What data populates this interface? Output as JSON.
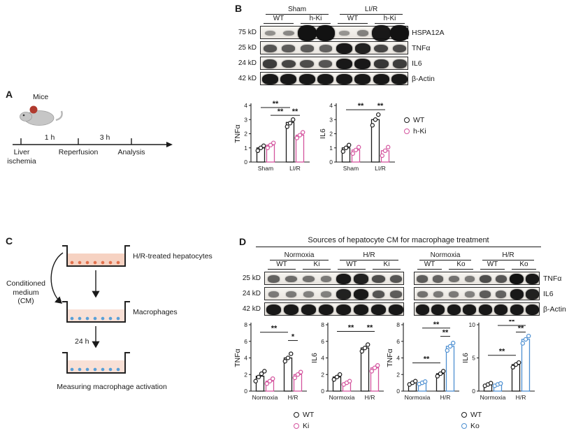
{
  "colors": {
    "wt": "#1a1a1a",
    "ki": "#d4549e",
    "ko": "#4d8fd1"
  },
  "panelA": {
    "label": "A",
    "mice_label": "Mice",
    "timeline": {
      "interval1": "1 h",
      "interval2": "3 h",
      "stop1": "Liver ischemia",
      "stop2": "Reperfusion",
      "stop3": "Analysis"
    }
  },
  "panelB": {
    "label": "B",
    "blot": {
      "groups": [
        {
          "name": "Sham",
          "subs": [
            "WT",
            "h-Ki"
          ]
        },
        {
          "name": "LI/R",
          "subs": [
            "WT",
            "h-Ki"
          ]
        }
      ],
      "rows": [
        {
          "kd": "75 kD",
          "protein": "HSPA12A",
          "blob": true,
          "bands": [
            0.15,
            0.2,
            1,
            1,
            0.12,
            0.25,
            0.95,
            1
          ]
        },
        {
          "kd": "25 kD",
          "protein": "TNFα",
          "bands": [
            0.55,
            0.5,
            0.5,
            0.45,
            0.95,
            0.9,
            0.65,
            0.6
          ]
        },
        {
          "kd": "24 kD",
          "protein": "IL6",
          "bands": [
            0.7,
            0.65,
            0.6,
            0.55,
            0.95,
            0.95,
            0.75,
            0.7
          ]
        },
        {
          "kd": "42 kD",
          "protein": "β-Actin",
          "bands": [
            0.95,
            0.95,
            0.95,
            0.95,
            0.95,
            0.95,
            0.95,
            0.95
          ]
        }
      ]
    },
    "charts": [
      {
        "type": "bar",
        "ylabel": "TNFα",
        "ylim": [
          0,
          4
        ],
        "yticks": [
          0,
          1,
          2,
          3,
          4
        ],
        "categories": [
          "Sham",
          "LI/R"
        ],
        "series": [
          {
            "name": "WT",
            "color": "#1a1a1a",
            "values": [
              1.0,
              2.8
            ],
            "points": [
              [
                0.8,
                1.0,
                1.15
              ],
              [
                2.5,
                2.75,
                3.0
              ]
            ]
          },
          {
            "name": "h-Ki",
            "color": "#d4549e",
            "values": [
              1.2,
              1.9
            ],
            "points": [
              [
                1.0,
                1.2,
                1.35
              ],
              [
                1.7,
                1.9,
                2.1
              ]
            ]
          }
        ],
        "sigs": [
          {
            "a": [
              0,
              0
            ],
            "b": [
              1,
              0
            ],
            "y": 3.85,
            "label": "**"
          },
          {
            "a": [
              0,
              1
            ],
            "b": [
              1,
              0
            ],
            "y": 3.3,
            "label": "**"
          },
          {
            "a": [
              1,
              0
            ],
            "b": [
              1,
              1
            ],
            "y": 3.3,
            "label": "**"
          }
        ]
      },
      {
        "type": "bar",
        "ylabel": "IL6",
        "ylim": [
          0,
          4
        ],
        "yticks": [
          0,
          1,
          2,
          3,
          4
        ],
        "categories": [
          "Sham",
          "LI/R"
        ],
        "series": [
          {
            "name": "WT",
            "color": "#1a1a1a",
            "values": [
              1.0,
              3.0
            ],
            "points": [
              [
                0.75,
                1.0,
                1.2
              ],
              [
                2.6,
                3.0,
                3.35
              ]
            ]
          },
          {
            "name": "h-Ki",
            "color": "#d4549e",
            "values": [
              0.85,
              0.8
            ],
            "points": [
              [
                0.6,
                0.85,
                1.05
              ],
              [
                0.45,
                0.8,
                1.05
              ]
            ]
          }
        ],
        "sigs": [
          {
            "a": [
              0,
              0
            ],
            "b": [
              1,
              0
            ],
            "y": 3.7,
            "label": "**"
          },
          {
            "a": [
              1,
              0
            ],
            "b": [
              1,
              1
            ],
            "y": 3.7,
            "label": "**"
          }
        ]
      }
    ],
    "legend": [
      {
        "label": "WT",
        "color": "#1a1a1a"
      },
      {
        "label": "h-Ki",
        "color": "#d4549e"
      }
    ]
  },
  "panelC": {
    "label": "C",
    "cm_label": "Conditioned medium (CM)",
    "dish1_label": "H/R-treated hepatocytes",
    "dish2_label": "Macrophages",
    "duration": "24 h",
    "caption": "Measuring macrophage activation"
  },
  "panelD": {
    "label": "D",
    "title": "Sources of hepatocyte CM for macrophage treatment",
    "blot_left": {
      "groups": [
        {
          "name": "Normoxia",
          "subs": [
            "WT",
            "Ki"
          ]
        },
        {
          "name": "H/R",
          "subs": [
            "WT",
            "Ki"
          ]
        }
      ],
      "rows": [
        {
          "kd": "25 kD",
          "bands": [
            0.45,
            0.4,
            0.35,
            0.3,
            0.95,
            0.9,
            0.6,
            0.55
          ]
        },
        {
          "kd": "24 kD",
          "bands": [
            0.3,
            0.3,
            0.25,
            0.25,
            0.9,
            0.95,
            0.55,
            0.5
          ]
        },
        {
          "kd": "42 kD",
          "bands": [
            0.95,
            0.95,
            0.95,
            0.95,
            0.95,
            0.95,
            0.95,
            0.95
          ]
        }
      ]
    },
    "blot_right": {
      "groups": [
        {
          "name": "Normoxia",
          "subs": [
            "WT",
            "Ko"
          ]
        },
        {
          "name": "H/R",
          "subs": [
            "WT",
            "Ko"
          ]
        }
      ],
      "rows": [
        {
          "protein": "TNFα",
          "bands": [
            0.5,
            0.45,
            0.35,
            0.3,
            0.6,
            0.55,
            1,
            0.95
          ]
        },
        {
          "protein": "IL6",
          "bands": [
            0.35,
            0.3,
            0.3,
            0.25,
            0.5,
            0.45,
            0.95,
            0.9
          ]
        },
        {
          "protein": "β-Actin",
          "bands": [
            0.95,
            0.95,
            0.95,
            0.95,
            0.95,
            0.95,
            0.95,
            0.95
          ]
        }
      ]
    },
    "charts": [
      {
        "type": "bar",
        "ylabel": "TNFα",
        "ylim": [
          0,
          8
        ],
        "yticks": [
          0,
          2,
          4,
          6,
          8
        ],
        "categories": [
          "Normoxia",
          "H/R"
        ],
        "series": [
          {
            "name": "WT",
            "color": "#1a1a1a",
            "values": [
              1.8,
              4.0
            ],
            "points": [
              [
                1.2,
                1.7,
                2.1,
                2.4
              ],
              [
                3.6,
                4.0,
                4.5
              ]
            ]
          },
          {
            "name": "Ki",
            "color": "#d4549e",
            "values": [
              1.2,
              2.0
            ],
            "points": [
              [
                0.9,
                1.2,
                1.5
              ],
              [
                1.6,
                2.0,
                2.3
              ]
            ]
          }
        ],
        "sigs": [
          {
            "a": [
              0,
              0
            ],
            "b": [
              1,
              0
            ],
            "y": 7.1,
            "label": "**"
          },
          {
            "a": [
              1,
              0
            ],
            "b": [
              1,
              1
            ],
            "y": 6.1,
            "label": "*"
          }
        ]
      },
      {
        "type": "bar",
        "ylabel": "IL6",
        "ylim": [
          0,
          8
        ],
        "yticks": [
          0,
          2,
          4,
          6,
          8
        ],
        "categories": [
          "Normoxia",
          "H/R"
        ],
        "series": [
          {
            "name": "WT",
            "color": "#1a1a1a",
            "values": [
              1.7,
              5.2
            ],
            "points": [
              [
                1.4,
                1.7,
                2.0
              ],
              [
                4.8,
                5.2,
                5.6
              ]
            ]
          },
          {
            "name": "Ki",
            "color": "#d4549e",
            "values": [
              1.0,
              2.8
            ],
            "points": [
              [
                0.8,
                1.0,
                1.2
              ],
              [
                2.4,
                2.8,
                3.1
              ]
            ]
          }
        ],
        "sigs": [
          {
            "a": [
              0,
              0
            ],
            "b": [
              1,
              0
            ],
            "y": 7.2,
            "label": "**"
          },
          {
            "a": [
              1,
              0
            ],
            "b": [
              1,
              1
            ],
            "y": 7.2,
            "label": "**"
          }
        ]
      },
      {
        "type": "bar",
        "ylabel": "TNFα",
        "ylim": [
          0,
          8
        ],
        "yticks": [
          0,
          2,
          4,
          6,
          8
        ],
        "categories": [
          "Normoxia",
          "H/R"
        ],
        "series": [
          {
            "name": "WT",
            "color": "#1a1a1a",
            "values": [
              1.0,
              2.1
            ],
            "points": [
              [
                0.8,
                1.0,
                1.2
              ],
              [
                1.8,
                2.1,
                2.4
              ]
            ]
          },
          {
            "name": "Ko",
            "color": "#4d8fd1",
            "values": [
              1.0,
              5.4
            ],
            "points": [
              [
                0.85,
                1.0,
                1.15
              ],
              [
                4.9,
                5.4,
                5.8
              ]
            ]
          }
        ],
        "sigs": [
          {
            "a": [
              0,
              0
            ],
            "b": [
              1,
              0
            ],
            "y": 3.4,
            "label": "**"
          },
          {
            "a": [
              1,
              0
            ],
            "b": [
              1,
              1
            ],
            "y": 6.6,
            "label": "**"
          },
          {
            "a": [
              0,
              1
            ],
            "b": [
              1,
              1
            ],
            "y": 7.6,
            "label": "**"
          }
        ]
      },
      {
        "type": "bar",
        "ylabel": "IL6",
        "ylim": [
          0,
          10
        ],
        "yticks": [
          0,
          5,
          10
        ],
        "categories": [
          "Normoxia",
          "H/R"
        ],
        "series": [
          {
            "name": "WT",
            "color": "#1a1a1a",
            "values": [
              1.0,
              4.0
            ],
            "points": [
              [
                0.8,
                1.0,
                1.2
              ],
              [
                3.6,
                4.0,
                4.3
              ]
            ]
          },
          {
            "name": "Ko",
            "color": "#4d8fd1",
            "values": [
              1.0,
              7.8
            ],
            "points": [
              [
                0.8,
                1.0,
                1.15
              ],
              [
                7.2,
                7.8,
                8.3
              ]
            ]
          }
        ],
        "sigs": [
          {
            "a": [
              0,
              0
            ],
            "b": [
              1,
              0
            ],
            "y": 5.4,
            "label": "**"
          },
          {
            "a": [
              1,
              0
            ],
            "b": [
              1,
              1
            ],
            "y": 8.9,
            "label": "**"
          },
          {
            "a": [
              0,
              1
            ],
            "b": [
              1,
              1
            ],
            "y": 9.9,
            "label": "**"
          }
        ]
      }
    ],
    "legend_ki": [
      {
        "label": "WT",
        "color": "#1a1a1a"
      },
      {
        "label": "Ki",
        "color": "#d4549e"
      }
    ],
    "legend_ko": [
      {
        "label": "WT",
        "color": "#1a1a1a"
      },
      {
        "label": "Ko",
        "color": "#4d8fd1"
      }
    ]
  }
}
